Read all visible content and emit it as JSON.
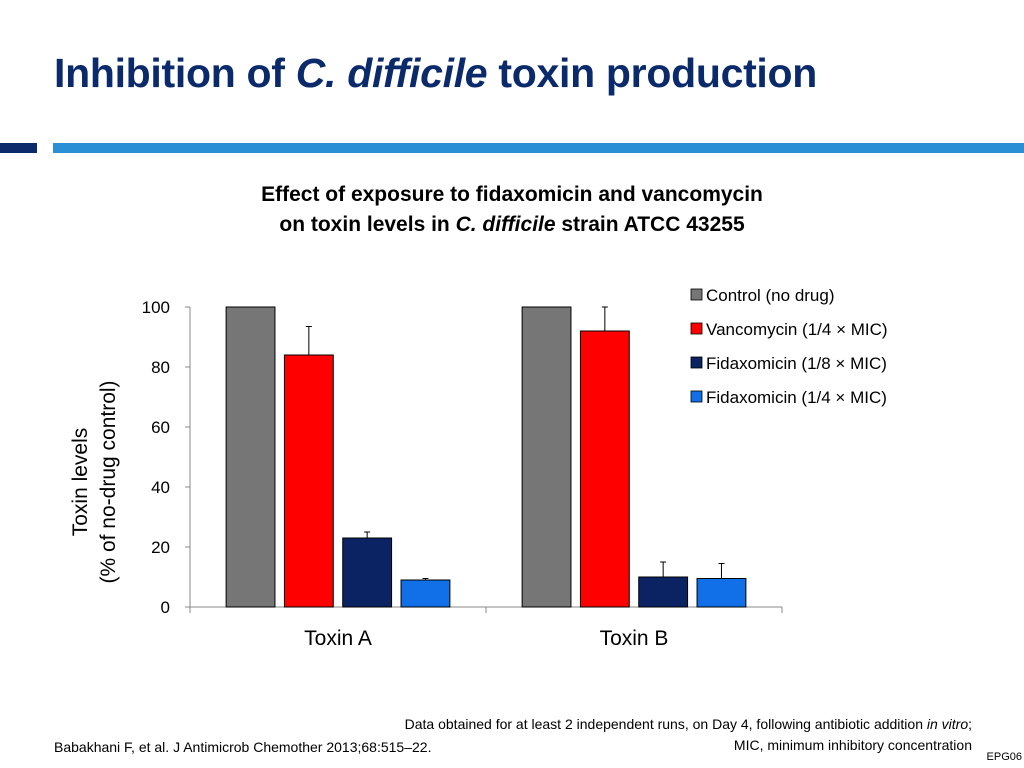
{
  "slide": {
    "title_part1": "Inhibition of ",
    "title_italic": "C. difficile",
    "title_part2": " toxin production",
    "footnote_line1_a": "Data obtained for at least 2 independent runs, on Day 4, following antibiotic addition ",
    "footnote_line1_italic": "in vitro",
    "footnote_line1_b": ";",
    "footnote_line2": "MIC, minimum inhibitory concentration",
    "citation": "Babakhani F, et al. J Antimicrob Chemother 2013;68:515–22.",
    "code": "EPG06"
  },
  "chart_data": {
    "type": "bar",
    "title_line1": "Effect of exposure to fidaxomicin and vancomycin",
    "title_line2_a": "on toxin levels in ",
    "title_line2_italic": "C. difficile",
    "title_line2_b": " strain ATCC 43255",
    "ylabel_line1": "Toxin levels",
    "ylabel_line2": "(% of no-drug control)",
    "xlabel": "",
    "ylim": [
      0,
      100
    ],
    "yticks": [
      0,
      20,
      40,
      60,
      80,
      100
    ],
    "categories": [
      "Toxin A",
      "Toxin B"
    ],
    "grid": false,
    "legend_position": "top-right",
    "error_bars": true,
    "series": [
      {
        "name": "Control (no drug)",
        "color": "#767676",
        "values": [
          100,
          100
        ],
        "errors": [
          0,
          0
        ]
      },
      {
        "name": "Vancomycin (1/4 × MIC)",
        "color": "#ff0000",
        "values": [
          84,
          92
        ],
        "errors": [
          9.5,
          8
        ]
      },
      {
        "name": "Fidaxomicin (1/8 × MIC)",
        "color": "#0b2263",
        "values": [
          23,
          10
        ],
        "errors": [
          2,
          5
        ]
      },
      {
        "name": "Fidaxomicin (1/4 × MIC)",
        "color": "#1170e8",
        "values": [
          9,
          9.5
        ],
        "errors": [
          0.5,
          5
        ]
      }
    ]
  }
}
